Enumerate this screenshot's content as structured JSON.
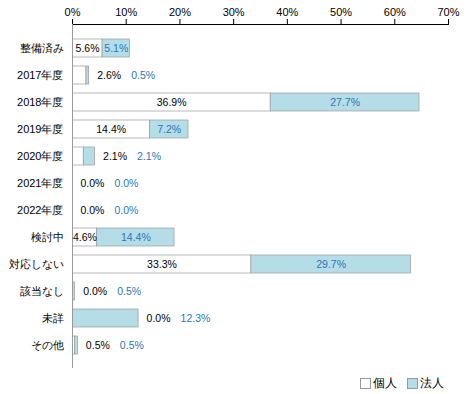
{
  "chart_data": {
    "type": "bar",
    "orientation": "horizontal",
    "stacked": true,
    "data_labels": true,
    "grid": false,
    "legend": "bottom-right",
    "categories": [
      "整備済み",
      "2017年度",
      "2018年度",
      "2019年度",
      "2020年度",
      "2021年度",
      "2022年度",
      "検討中",
      "対応しない",
      "該当なし",
      "未詳",
      "その他"
    ],
    "series": [
      {
        "name": "個人",
        "color": "#ffffff",
        "values": [
          5.6,
          2.6,
          36.9,
          14.4,
          2.1,
          0.0,
          0.0,
          4.6,
          33.3,
          0.0,
          0.0,
          0.5
        ],
        "value_labels": [
          "5.6%",
          "2.6%",
          "36.9%",
          "14.4%",
          "2.1%",
          "0.0%",
          "0.0%",
          "4.6%",
          "33.3%",
          "0.0%",
          "0.0%",
          "0.5%"
        ]
      },
      {
        "name": "法人",
        "color": "#b4dde8",
        "values": [
          5.1,
          0.5,
          27.7,
          7.2,
          2.1,
          0.0,
          0.0,
          14.4,
          29.7,
          0.5,
          12.3,
          0.5
        ],
        "value_labels": [
          "5.1%",
          "0.5%",
          "27.7%",
          "7.2%",
          "2.1%",
          "0.0%",
          "0.0%",
          "14.4%",
          "29.7%",
          "0.5%",
          "12.3%",
          "0.5%"
        ]
      }
    ],
    "xlim": [
      0,
      70
    ],
    "xticks": [
      {
        "value": 0,
        "label": "0%"
      },
      {
        "value": 10,
        "label": "10%"
      },
      {
        "value": 20,
        "label": "20%"
      },
      {
        "value": 30,
        "label": "30%"
      },
      {
        "value": 40,
        "label": "40%"
      },
      {
        "value": 50,
        "label": "50%"
      },
      {
        "value": 60,
        "label": "60%"
      },
      {
        "value": 70,
        "label": "70%"
      }
    ]
  }
}
